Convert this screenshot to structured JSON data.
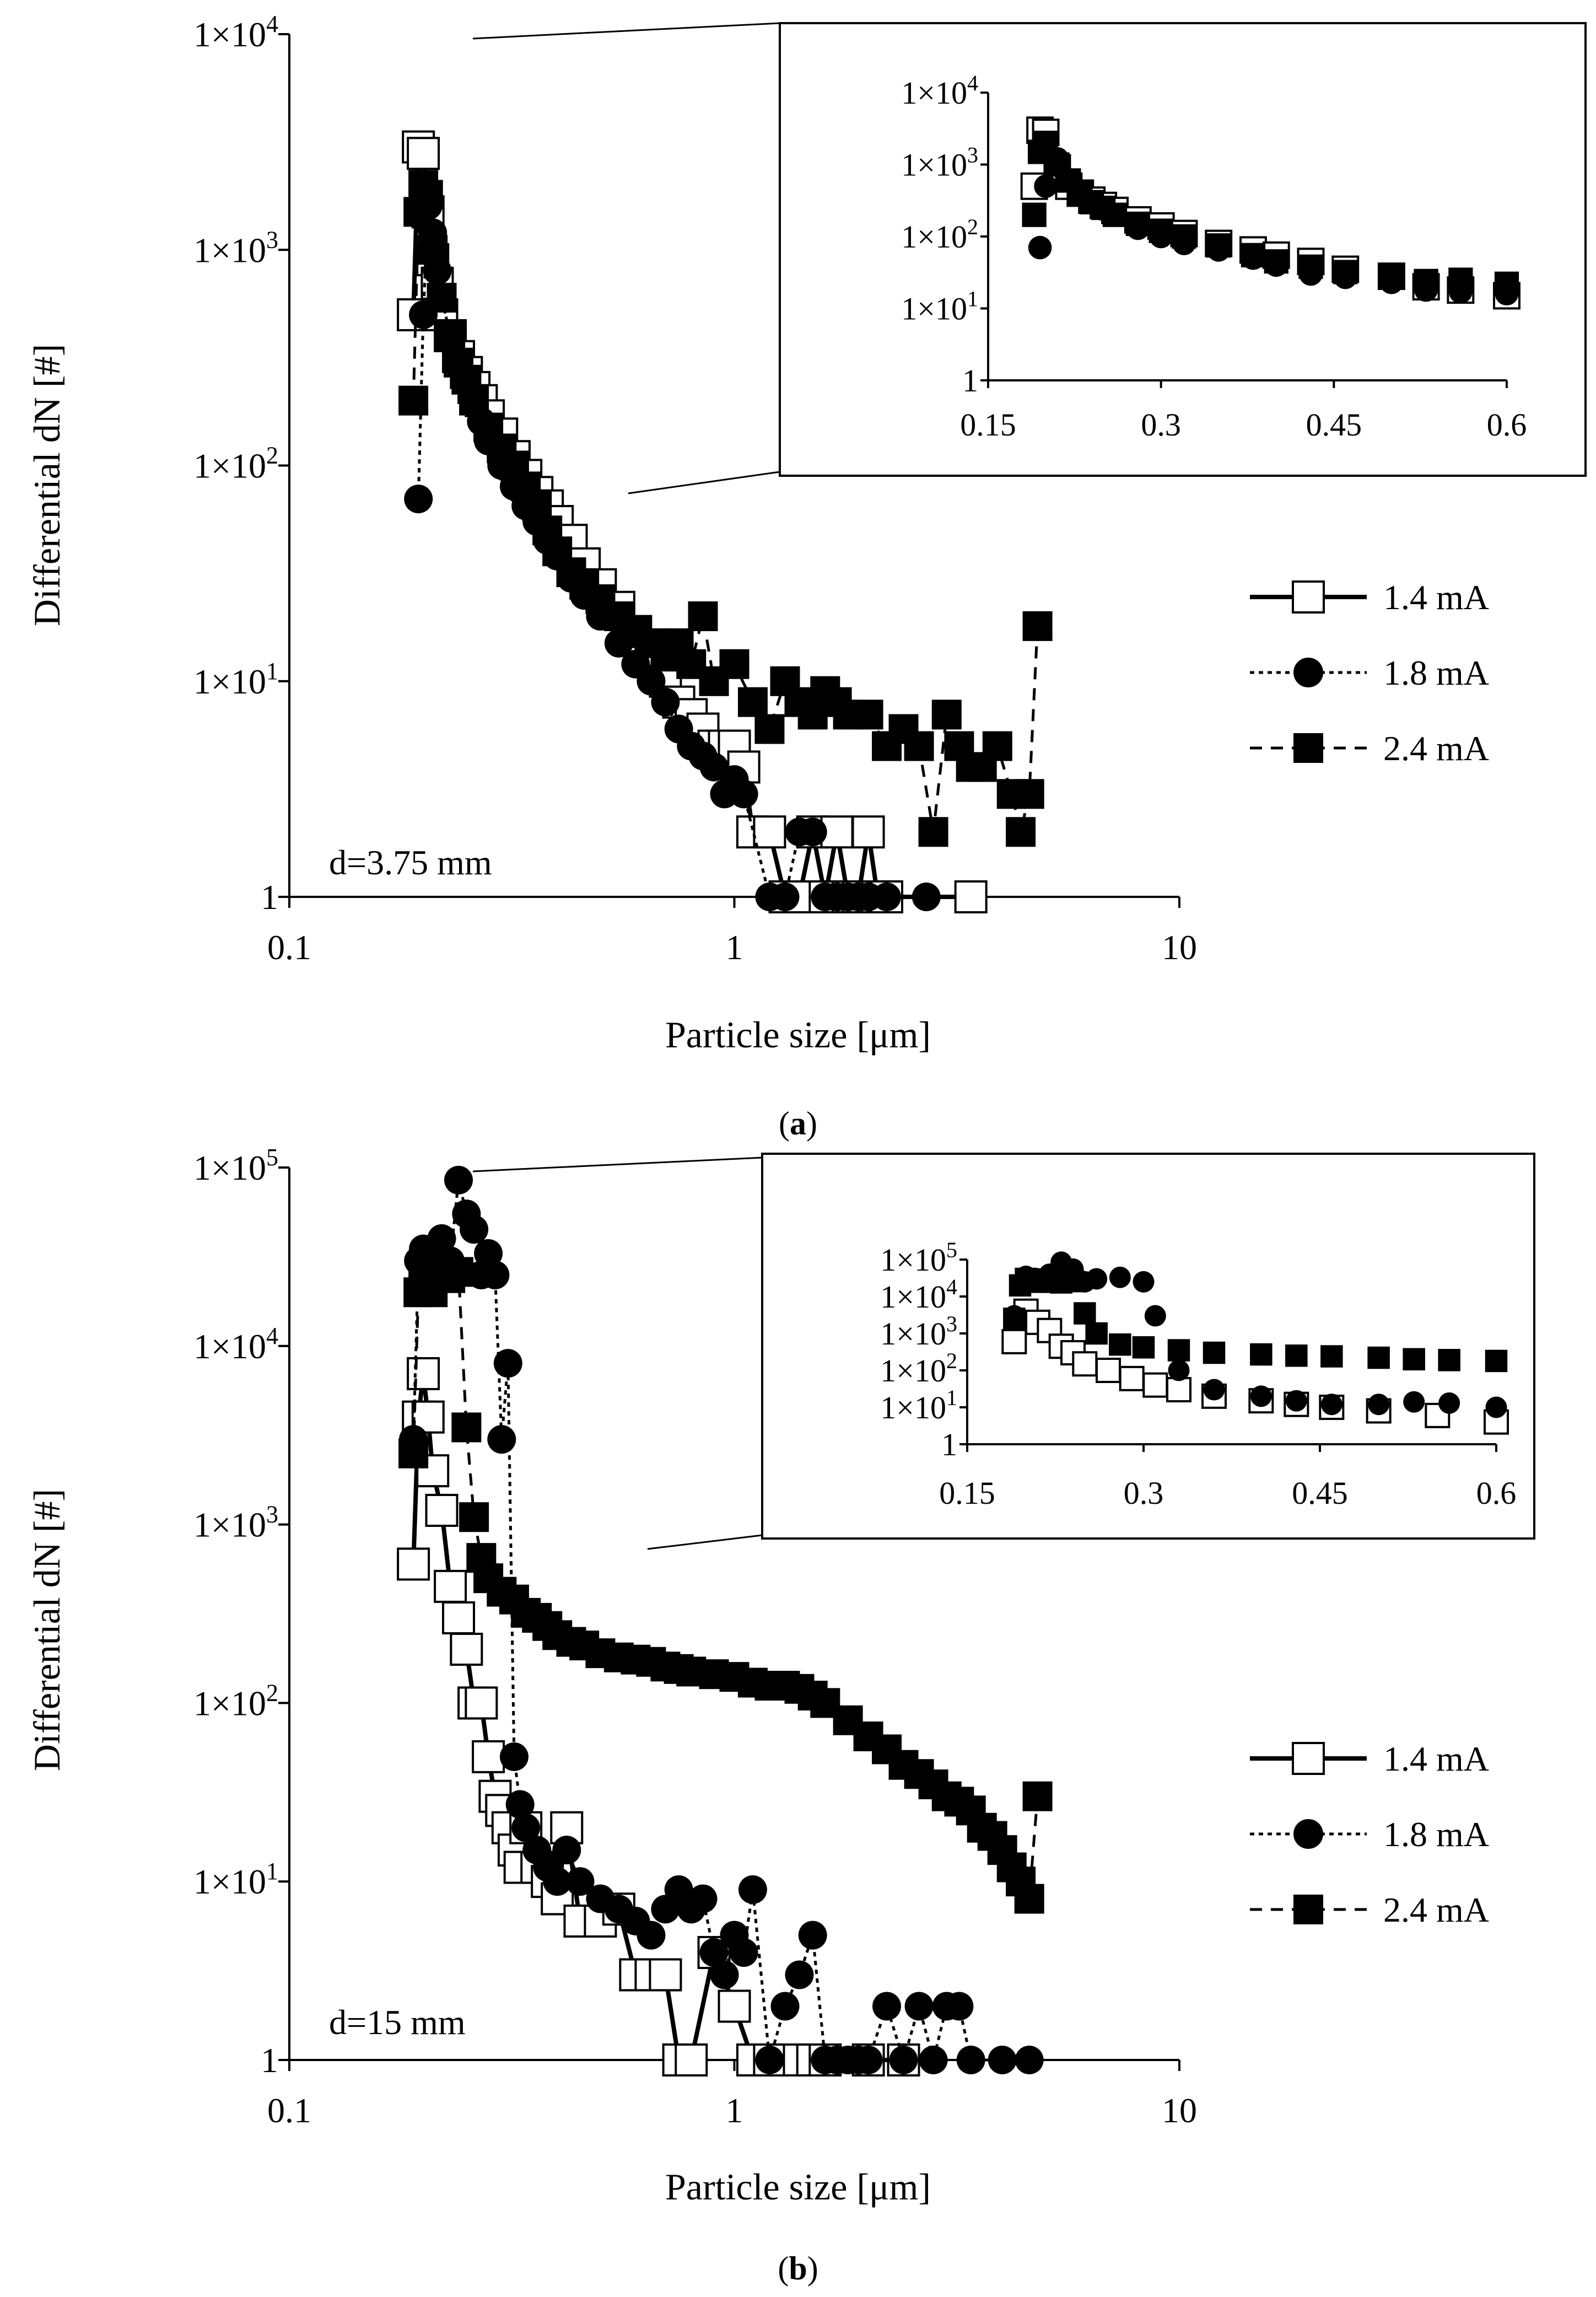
{
  "figure": {
    "panels": [
      "(a)",
      "(b)"
    ],
    "label_parts": [
      {
        "open": "(",
        "letter": "a",
        "close": ")"
      },
      {
        "open": "(",
        "letter": "b",
        "close": ")"
      }
    ]
  },
  "legend": {
    "entries": [
      "1.4 mA",
      "1.8 mA",
      "2.4 mA"
    ]
  },
  "chart_data": [
    {
      "type": "scatter",
      "panel": "a",
      "xlabel": "Particle size [μm]",
      "ylabel": "Differential dN [#]",
      "xscale": "log",
      "yscale": "log",
      "xlim": [
        0.1,
        10
      ],
      "ylim": [
        1,
        10000
      ],
      "xticks": [
        "0.1",
        "1",
        "10"
      ],
      "yticks": [
        {
          "value": 1,
          "base": "1",
          "exp": ""
        },
        {
          "value": 10,
          "base": "1×10",
          "exp": "1"
        },
        {
          "value": 100,
          "base": "1×10",
          "exp": "2"
        },
        {
          "value": 1000,
          "base": "1×10",
          "exp": "3"
        },
        {
          "value": 10000,
          "base": "1×10",
          "exp": "4"
        }
      ],
      "annotation": "d=3.75 mm",
      "legend_position": "right",
      "series": [
        {
          "name": "1.4 mA",
          "marker": "open-square",
          "line": "solid",
          "x": [
            0.19,
            0.195,
            0.2,
            0.205,
            0.21,
            0.215,
            0.22,
            0.23,
            0.24,
            0.25,
            0.26,
            0.27,
            0.28,
            0.3,
            0.32,
            0.34,
            0.36,
            0.38,
            0.4,
            0.43,
            0.46,
            0.5,
            0.55,
            0.6,
            0.65,
            0.7,
            0.75,
            0.8,
            0.85,
            0.9,
            0.95,
            1.0,
            1.05,
            1.1,
            1.2,
            1.3,
            1.4,
            1.5,
            1.6,
            1.7,
            1.8,
            1.9,
            2.0,
            2.1,
            2.2,
            3.4
          ],
          "y": [
            500,
            3000,
            2800,
            1500,
            900,
            700,
            500,
            400,
            320,
            270,
            230,
            200,
            170,
            140,
            110,
            90,
            75,
            65,
            55,
            45,
            35,
            28,
            22,
            17,
            13,
            10,
            8,
            7,
            6,
            5,
            5,
            5,
            4,
            2,
            2,
            1,
            1,
            2,
            1,
            2,
            1,
            1,
            2,
            1,
            1,
            1
          ]
        },
        {
          "name": "1.8 mA",
          "marker": "filled-circle",
          "line": "dotted",
          "x": [
            0.195,
            0.2,
            0.205,
            0.21,
            0.215,
            0.22,
            0.23,
            0.24,
            0.25,
            0.26,
            0.27,
            0.28,
            0.3,
            0.32,
            0.34,
            0.36,
            0.38,
            0.4,
            0.43,
            0.46,
            0.5,
            0.55,
            0.6,
            0.65,
            0.7,
            0.75,
            0.8,
            0.85,
            0.9,
            0.95,
            1.0,
            1.05,
            1.2,
            1.3,
            1.4,
            1.5,
            1.6,
            1.7,
            1.8,
            1.9,
            2.0,
            2.2,
            2.7
          ],
          "y": [
            70,
            500,
            1600,
            1200,
            800,
            600,
            400,
            300,
            240,
            200,
            160,
            130,
            100,
            80,
            65,
            55,
            45,
            38,
            30,
            25,
            20,
            15,
            12,
            10,
            8,
            6,
            5,
            4.5,
            4,
            3,
            3.5,
            3,
            1,
            1,
            2,
            2,
            1,
            1,
            1,
            1,
            1,
            1,
            1
          ]
        },
        {
          "name": "2.4 mA",
          "marker": "filled-square",
          "line": "dashed",
          "x": [
            0.19,
            0.195,
            0.2,
            0.205,
            0.21,
            0.22,
            0.23,
            0.24,
            0.25,
            0.26,
            0.28,
            0.3,
            0.32,
            0.34,
            0.36,
            0.38,
            0.4,
            0.43,
            0.46,
            0.5,
            0.55,
            0.6,
            0.65,
            0.7,
            0.75,
            0.8,
            0.85,
            0.9,
            1.0,
            1.1,
            1.2,
            1.3,
            1.4,
            1.5,
            1.6,
            1.7,
            1.8,
            2.0,
            2.2,
            2.4,
            2.6,
            2.8,
            3.0,
            3.2,
            3.4,
            3.6,
            3.9,
            4.2,
            4.4,
            4.6,
            4.8
          ],
          "y": [
            200,
            1500,
            2000,
            1800,
            1000,
            600,
            400,
            300,
            250,
            200,
            150,
            120,
            100,
            80,
            65,
            50,
            40,
            32,
            28,
            24,
            20,
            17,
            15,
            13,
            15,
            12,
            20,
            10,
            12,
            8,
            6,
            10,
            8,
            7,
            9,
            8,
            7,
            7,
            5,
            6,
            5,
            2,
            7,
            5,
            4,
            4,
            5,
            3,
            2,
            3,
            18
          ]
        }
      ]
    },
    {
      "type": "scatter",
      "panel": "a-inset",
      "xscale": "linear",
      "yscale": "log",
      "xlim": [
        0.15,
        0.6
      ],
      "ylim": [
        1,
        10000
      ],
      "xticks": [
        "0.15",
        "0.3",
        "0.45",
        "0.6"
      ],
      "yticks": [
        {
          "value": 1,
          "base": "1",
          "exp": ""
        },
        {
          "value": 10,
          "base": "1×10",
          "exp": "1"
        },
        {
          "value": 100,
          "base": "1×10",
          "exp": "2"
        },
        {
          "value": 1000,
          "base": "1×10",
          "exp": "3"
        },
        {
          "value": 10000,
          "base": "1×10",
          "exp": "4"
        }
      ],
      "series": [
        {
          "name": "1.4 mA",
          "marker": "open-square",
          "x": [
            0.19,
            0.195,
            0.2,
            0.21,
            0.22,
            0.23,
            0.24,
            0.25,
            0.26,
            0.28,
            0.3,
            0.32,
            0.35,
            0.38,
            0.4,
            0.43,
            0.46,
            0.5,
            0.53,
            0.56,
            0.6
          ],
          "y": [
            500,
            3000,
            2800,
            900,
            500,
            400,
            320,
            270,
            230,
            170,
            140,
            110,
            80,
            65,
            55,
            45,
            35,
            28,
            20,
            18,
            15
          ]
        },
        {
          "name": "1.8 mA",
          "marker": "filled-circle",
          "x": [
            0.195,
            0.2,
            0.21,
            0.22,
            0.23,
            0.24,
            0.25,
            0.26,
            0.28,
            0.3,
            0.32,
            0.35,
            0.38,
            0.4,
            0.43,
            0.46,
            0.5,
            0.53,
            0.56,
            0.6
          ],
          "y": [
            70,
            500,
            1200,
            600,
            400,
            300,
            240,
            200,
            130,
            100,
            80,
            65,
            50,
            40,
            30,
            27,
            23,
            18,
            17,
            16
          ]
        },
        {
          "name": "2.4 mA",
          "marker": "filled-square",
          "x": [
            0.19,
            0.195,
            0.2,
            0.21,
            0.22,
            0.23,
            0.24,
            0.25,
            0.26,
            0.28,
            0.3,
            0.32,
            0.35,
            0.38,
            0.4,
            0.43,
            0.46,
            0.5,
            0.53,
            0.56,
            0.6
          ],
          "y": [
            200,
            1500,
            2000,
            1000,
            600,
            400,
            300,
            250,
            200,
            150,
            120,
            100,
            75,
            55,
            45,
            38,
            32,
            28,
            24,
            25,
            22
          ]
        }
      ]
    },
    {
      "type": "scatter",
      "panel": "b",
      "xlabel": "Particle size [μm]",
      "ylabel": "Differential dN [#]",
      "xscale": "log",
      "yscale": "log",
      "xlim": [
        0.1,
        10
      ],
      "ylim": [
        1,
        100000
      ],
      "xticks": [
        "0.1",
        "1",
        "10"
      ],
      "yticks": [
        {
          "value": 1,
          "base": "1",
          "exp": ""
        },
        {
          "value": 10,
          "base": "1×10",
          "exp": "1"
        },
        {
          "value": 100,
          "base": "1×10",
          "exp": "2"
        },
        {
          "value": 1000,
          "base": "1×10",
          "exp": "3"
        },
        {
          "value": 10000,
          "base": "1×10",
          "exp": "4"
        },
        {
          "value": 100000,
          "base": "1×10",
          "exp": "5"
        }
      ],
      "annotation": "d=15 mm",
      "legend_position": "right",
      "series": [
        {
          "name": "1.4 mA",
          "marker": "open-square",
          "line": "solid",
          "x": [
            0.19,
            0.195,
            0.2,
            0.205,
            0.21,
            0.22,
            0.23,
            0.24,
            0.25,
            0.26,
            0.27,
            0.28,
            0.29,
            0.3,
            0.31,
            0.32,
            0.33,
            0.34,
            0.36,
            0.38,
            0.4,
            0.42,
            0.45,
            0.5,
            0.55,
            0.6,
            0.65,
            0.7,
            0.75,
            0.8,
            0.9,
            1.0,
            1.1,
            1.2,
            1.4,
            1.5,
            1.6,
            2.0,
            2.4
          ],
          "y": [
            600,
            4000,
            7000,
            4000,
            2000,
            1200,
            450,
            300,
            200,
            100,
            100,
            50,
            30,
            25,
            20,
            15,
            12,
            20,
            12,
            10,
            8,
            20,
            6,
            6,
            7,
            3,
            3,
            3,
            1,
            1,
            4,
            2,
            1,
            1,
            1,
            1,
            1,
            1,
            1
          ]
        },
        {
          "name": "1.8 mA",
          "marker": "filled-circle",
          "line": "dotted",
          "x": [
            0.19,
            0.195,
            0.2,
            0.205,
            0.21,
            0.22,
            0.23,
            0.24,
            0.25,
            0.26,
            0.27,
            0.28,
            0.29,
            0.3,
            0.31,
            0.32,
            0.33,
            0.34,
            0.36,
            0.38,
            0.4,
            0.42,
            0.45,
            0.5,
            0.55,
            0.6,
            0.65,
            0.7,
            0.75,
            0.8,
            0.85,
            0.9,
            0.95,
            1.0,
            1.05,
            1.1,
            1.2,
            1.3,
            1.4,
            1.5,
            1.6,
            1.7,
            1.8,
            1.9,
            2.0,
            2.2,
            2.4,
            2.6,
            2.8,
            3.0,
            3.2,
            3.4,
            4.0,
            4.6
          ],
          "y": [
            3000,
            30000,
            35000,
            30000,
            25000,
            40000,
            30000,
            85000,
            55000,
            45000,
            25000,
            33000,
            25000,
            3000,
            8000,
            50,
            27,
            20,
            15,
            12,
            10,
            15,
            10,
            8,
            7,
            6,
            5,
            7,
            9,
            7,
            8,
            4,
            3,
            5,
            4,
            9,
            1,
            2,
            3,
            5,
            1,
            1,
            1,
            1,
            1,
            2,
            1,
            2,
            1,
            2,
            2,
            1,
            1,
            1
          ]
        },
        {
          "name": "2.4 mA",
          "marker": "filled-square",
          "line": "dashed",
          "x": [
            0.19,
            0.195,
            0.2,
            0.205,
            0.21,
            0.22,
            0.23,
            0.24,
            0.25,
            0.26,
            0.27,
            0.28,
            0.3,
            0.32,
            0.34,
            0.36,
            0.38,
            0.4,
            0.43,
            0.46,
            0.5,
            0.55,
            0.6,
            0.65,
            0.7,
            0.75,
            0.8,
            0.9,
            1.0,
            1.1,
            1.2,
            1.3,
            1.4,
            1.5,
            1.6,
            1.8,
            2.0,
            2.2,
            2.4,
            2.6,
            2.8,
            3.0,
            3.2,
            3.4,
            3.6,
            3.8,
            4.0,
            4.2,
            4.4,
            4.6,
            4.8
          ],
          "y": [
            2500,
            20000,
            22000,
            25000,
            20000,
            25000,
            24000,
            26000,
            3500,
            1100,
            650,
            500,
            420,
            380,
            320,
            300,
            270,
            240,
            220,
            210,
            190,
            180,
            175,
            170,
            160,
            155,
            150,
            145,
            140,
            130,
            125,
            125,
            120,
            110,
            100,
            80,
            65,
            55,
            45,
            40,
            35,
            30,
            28,
            25,
            20,
            18,
            15,
            12,
            10,
            8,
            30
          ]
        }
      ]
    },
    {
      "type": "scatter",
      "panel": "b-inset",
      "xscale": "linear",
      "yscale": "log",
      "xlim": [
        0.15,
        0.6
      ],
      "ylim": [
        1,
        100000
      ],
      "xticks": [
        "0.15",
        "0.3",
        "0.45",
        "0.6"
      ],
      "yticks": [
        {
          "value": 1,
          "base": "1",
          "exp": ""
        },
        {
          "value": 10,
          "base": "1×10",
          "exp": "1"
        },
        {
          "value": 100,
          "base": "1×10",
          "exp": "2"
        },
        {
          "value": 1000,
          "base": "1×10",
          "exp": "3"
        },
        {
          "value": 10000,
          "base": "1×10",
          "exp": "4"
        },
        {
          "value": 100000,
          "base": "1×10",
          "exp": "5"
        }
      ],
      "series": [
        {
          "name": "1.4 mA",
          "marker": "open-square",
          "x": [
            0.19,
            0.2,
            0.21,
            0.22,
            0.23,
            0.24,
            0.25,
            0.27,
            0.29,
            0.31,
            0.33,
            0.36,
            0.4,
            0.43,
            0.46,
            0.5,
            0.55,
            0.6
          ],
          "y": [
            600,
            4000,
            2000,
            1200,
            450,
            300,
            150,
            100,
            60,
            40,
            30,
            20,
            15,
            12,
            10,
            8,
            6,
            4
          ]
        },
        {
          "name": "1.8 mA",
          "marker": "filled-circle",
          "x": [
            0.19,
            0.2,
            0.21,
            0.22,
            0.23,
            0.24,
            0.25,
            0.26,
            0.28,
            0.3,
            0.31,
            0.33,
            0.36,
            0.4,
            0.43,
            0.46,
            0.5,
            0.53,
            0.56,
            0.6
          ],
          "y": [
            3000,
            35000,
            30000,
            40000,
            85000,
            55000,
            25000,
            30000,
            33000,
            25000,
            3000,
            100,
            30,
            20,
            15,
            12,
            12,
            14,
            13,
            10
          ]
        },
        {
          "name": "2.4 mA",
          "marker": "filled-square",
          "x": [
            0.19,
            0.195,
            0.2,
            0.21,
            0.22,
            0.23,
            0.24,
            0.25,
            0.26,
            0.28,
            0.3,
            0.33,
            0.36,
            0.4,
            0.43,
            0.46,
            0.5,
            0.53,
            0.56,
            0.6
          ],
          "y": [
            2500,
            20000,
            30000,
            25000,
            25000,
            24000,
            26000,
            3500,
            1000,
            500,
            420,
            350,
            300,
            270,
            250,
            240,
            220,
            200,
            190,
            180
          ]
        }
      ]
    }
  ]
}
